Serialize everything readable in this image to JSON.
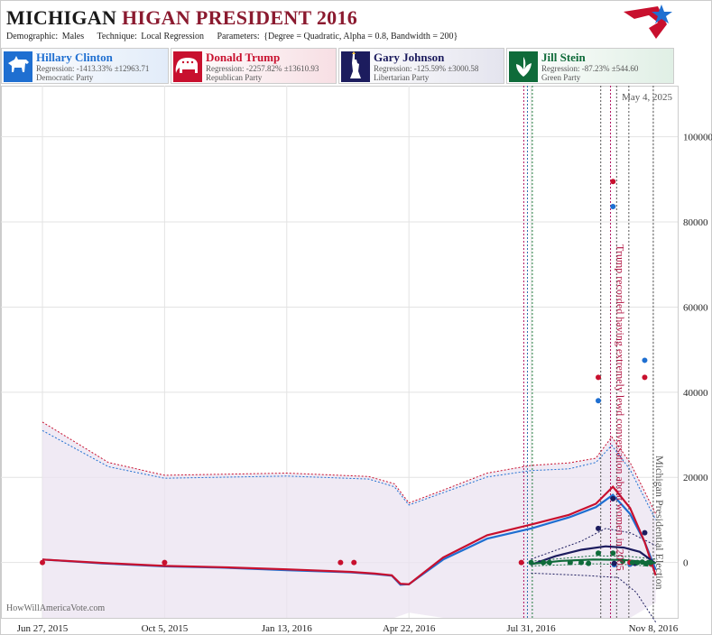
{
  "header": {
    "title_a": "MICHIGAN",
    "title_b": "HIGAN PRESIDENT 2016",
    "demographic_label": "Demographic:",
    "demographic_value": "Males",
    "technique_label": "Technique:",
    "technique_value": "Local Regression",
    "parameters_label": "Parameters:",
    "parameters_value": "{Degree = Quadratic, Alpha = 0.8, Bandwidth = 200}"
  },
  "logo": {
    "icon": "star-flag-logo-icon",
    "colors": [
      "#c8102e",
      "#1f6fd1"
    ]
  },
  "legend": [
    {
      "name": "Hillary Clinton",
      "regression": "Regression: -1413.33% ±12963.71",
      "party": "Democratic Party",
      "color": "#1f6fd1",
      "icon": "donkey-icon"
    },
    {
      "name": "Donald Trump",
      "regression": "Regression: -2257.82% ±13610.93",
      "party": "Republican Party",
      "color": "#c8102e",
      "icon": "elephant-icon"
    },
    {
      "name": "Gary Johnson",
      "regression": "Regression: -125.59% ±3000.58",
      "party": "Libertarian Party",
      "color": "#1c1c5e",
      "icon": "statue-of-liberty-icon"
    },
    {
      "name": "Jill Stein",
      "regression": "Regression: -87.23% ±544.60",
      "party": "Green Party",
      "color": "#0f6b3a",
      "icon": "leaf-icon"
    }
  ],
  "footer": {
    "site": "HowWillAmericaVote.com"
  },
  "chart_data": {
    "type": "line",
    "date_label": "May 4, 2025",
    "xlim": [
      "2015-05-24",
      "2016-11-28"
    ],
    "ylim": [
      -13000,
      112000
    ],
    "x_ticks": [
      {
        "date": "2015-06-27",
        "label": "Jun 27, 2015"
      },
      {
        "date": "2015-10-05",
        "label": "Oct 5, 2015"
      },
      {
        "date": "2016-01-13",
        "label": "Jan 13, 2016"
      },
      {
        "date": "2016-04-22",
        "label": "Apr 22, 2016"
      },
      {
        "date": "2016-07-31",
        "label": "Jul 31, 2016"
      },
      {
        "date": "2016-11-08",
        "label": "Nov 8, 2016"
      }
    ],
    "y_ticks": [
      0,
      20000,
      40000,
      60000,
      80000,
      100000
    ],
    "y_tick_labels": [
      "0",
      "20000",
      "40000",
      "60000",
      "80000",
      "100000"
    ],
    "grid": true,
    "band_color": "#ebe3f0",
    "annotations": [
      {
        "text": "Trump recorded having extremely lewd conversation about women in 2005",
        "date": "2016-10-07",
        "color": "#b01040"
      },
      {
        "text": "Michigan Presidential Election",
        "date": "2016-11-08",
        "color": "#555555"
      }
    ],
    "event_lines": [
      {
        "date": "2016-07-25",
        "color": "#b01060"
      },
      {
        "date": "2016-07-28",
        "color": "#2a6fb0"
      },
      {
        "date": "2016-08-01",
        "color": "#1f7a3a"
      },
      {
        "date": "2016-09-26",
        "color": "#555555"
      },
      {
        "date": "2016-10-04",
        "color": "#b01060"
      },
      {
        "date": "2016-10-09",
        "color": "#555555"
      },
      {
        "date": "2016-10-19",
        "color": "#555555"
      },
      {
        "date": "2016-11-08",
        "color": "#555555"
      }
    ],
    "series": [
      {
        "name": "Hillary Clinton",
        "color": "#1f6fd1",
        "line": [
          [
            "2015-06-27",
            700
          ],
          [
            "2015-08-15",
            -200
          ],
          [
            "2015-10-05",
            -900
          ],
          [
            "2015-11-20",
            -1200
          ],
          [
            "2016-01-13",
            -1800
          ],
          [
            "2016-03-05",
            -2300
          ],
          [
            "2016-03-25",
            -2700
          ],
          [
            "2016-04-08",
            -3100
          ],
          [
            "2016-04-15",
            -5200
          ],
          [
            "2016-04-22",
            -5100
          ],
          [
            "2016-05-20",
            700
          ],
          [
            "2016-06-25",
            5600
          ],
          [
            "2016-07-31",
            8000
          ],
          [
            "2016-08-31",
            10600
          ],
          [
            "2016-09-22",
            13000
          ],
          [
            "2016-10-06",
            15900
          ],
          [
            "2016-10-20",
            11400
          ],
          [
            "2016-11-01",
            4800
          ],
          [
            "2016-11-10",
            -1700
          ]
        ],
        "upper": [
          [
            "2015-06-27",
            31000
          ],
          [
            "2015-08-20",
            22500
          ],
          [
            "2015-10-05",
            19800
          ],
          [
            "2016-01-13",
            20300
          ],
          [
            "2016-03-20",
            19600
          ],
          [
            "2016-04-10",
            17800
          ],
          [
            "2016-04-22",
            13500
          ],
          [
            "2016-05-20",
            16400
          ],
          [
            "2016-06-25",
            20100
          ],
          [
            "2016-07-31",
            21600
          ],
          [
            "2016-08-31",
            22000
          ],
          [
            "2016-09-22",
            23500
          ],
          [
            "2016-10-05",
            27500
          ],
          [
            "2016-10-20",
            21800
          ],
          [
            "2016-11-10",
            10000
          ]
        ],
        "lower": [],
        "points": [
          [
            "2016-09-24",
            38000
          ],
          [
            "2016-10-06",
            83600
          ],
          [
            "2016-11-01",
            47500
          ],
          [
            "2016-10-07",
            -500
          ],
          [
            "2016-10-20",
            -400
          ]
        ]
      },
      {
        "name": "Donald Trump",
        "color": "#c8102e",
        "line": [
          [
            "2015-06-27",
            700
          ],
          [
            "2015-08-15",
            -100
          ],
          [
            "2015-10-05",
            -800
          ],
          [
            "2015-11-20",
            -1100
          ],
          [
            "2016-01-13",
            -1600
          ],
          [
            "2016-03-05",
            -2200
          ],
          [
            "2016-03-25",
            -2600
          ],
          [
            "2016-04-08",
            -3000
          ],
          [
            "2016-04-15",
            -5000
          ],
          [
            "2016-04-22",
            -5100
          ],
          [
            "2016-05-20",
            1200
          ],
          [
            "2016-06-25",
            6400
          ],
          [
            "2016-07-31",
            8900
          ],
          [
            "2016-08-31",
            11200
          ],
          [
            "2016-09-22",
            13800
          ],
          [
            "2016-10-06",
            17800
          ],
          [
            "2016-10-20",
            12800
          ],
          [
            "2016-11-01",
            4800
          ],
          [
            "2016-11-10",
            -3000
          ]
        ],
        "upper": [
          [
            "2015-06-27",
            33000
          ],
          [
            "2015-08-20",
            23500
          ],
          [
            "2015-10-05",
            20500
          ],
          [
            "2016-01-13",
            21000
          ],
          [
            "2016-03-20",
            20200
          ],
          [
            "2016-04-10",
            18500
          ],
          [
            "2016-04-22",
            14000
          ],
          [
            "2016-05-20",
            17000
          ],
          [
            "2016-06-25",
            21000
          ],
          [
            "2016-07-31",
            22800
          ],
          [
            "2016-08-31",
            23400
          ],
          [
            "2016-09-22",
            24500
          ],
          [
            "2016-10-05",
            29500
          ],
          [
            "2016-10-20",
            23500
          ],
          [
            "2016-11-10",
            11500
          ]
        ],
        "lower": [],
        "points": [
          [
            "2015-06-27",
            0
          ],
          [
            "2015-10-05",
            0
          ],
          [
            "2016-02-26",
            0
          ],
          [
            "2016-03-08",
            0
          ],
          [
            "2016-07-23",
            0
          ],
          [
            "2016-09-24",
            43500
          ],
          [
            "2016-10-06",
            89500
          ],
          [
            "2016-11-01",
            43500
          ],
          [
            "2016-10-20",
            0
          ],
          [
            "2016-11-06",
            -300
          ]
        ]
      },
      {
        "name": "Gary Johnson",
        "color": "#1c1c5e",
        "line": [
          [
            "2016-07-31",
            -500
          ],
          [
            "2016-08-20",
            1500
          ],
          [
            "2016-09-10",
            3000
          ],
          [
            "2016-09-30",
            3800
          ],
          [
            "2016-10-15",
            3500
          ],
          [
            "2016-10-28",
            2500
          ],
          [
            "2016-11-10",
            -200
          ]
        ],
        "upper": [
          [
            "2016-07-31",
            800
          ],
          [
            "2016-09-10",
            5000
          ],
          [
            "2016-09-30",
            8000
          ],
          [
            "2016-10-20",
            7000
          ],
          [
            "2016-11-10",
            4000
          ]
        ],
        "lower": [
          [
            "2016-07-31",
            -2500
          ],
          [
            "2016-09-10",
            -3000
          ],
          [
            "2016-10-10",
            -3500
          ],
          [
            "2016-10-25",
            -7000
          ],
          [
            "2016-11-10",
            -14000
          ]
        ],
        "points": [
          [
            "2016-09-24",
            8000
          ],
          [
            "2016-10-06",
            15000
          ],
          [
            "2016-11-01",
            7000
          ],
          [
            "2016-10-07",
            -200
          ],
          [
            "2016-10-24",
            -200
          ]
        ]
      },
      {
        "name": "Jill Stein",
        "color": "#0f6b3a",
        "line": [
          [
            "2016-07-31",
            -300
          ],
          [
            "2016-08-25",
            400
          ],
          [
            "2016-09-20",
            700
          ],
          [
            "2016-10-15",
            600
          ],
          [
            "2016-11-10",
            -100
          ]
        ],
        "upper": [
          [
            "2016-07-31",
            300
          ],
          [
            "2016-09-20",
            1600
          ],
          [
            "2016-10-20",
            1400
          ],
          [
            "2016-11-10",
            800
          ]
        ],
        "lower": [
          [
            "2016-07-31",
            -800
          ],
          [
            "2016-09-20",
            -300
          ],
          [
            "2016-10-20",
            -500
          ],
          [
            "2016-11-10",
            -1000
          ]
        ],
        "points": [
          [
            "2016-07-31",
            0
          ],
          [
            "2016-08-10",
            0
          ],
          [
            "2016-08-15",
            0
          ],
          [
            "2016-09-01",
            0
          ],
          [
            "2016-09-10",
            0
          ],
          [
            "2016-09-16",
            -200
          ],
          [
            "2016-09-24",
            2200
          ],
          [
            "2016-10-06",
            2200
          ],
          [
            "2016-10-14",
            300
          ],
          [
            "2016-10-22",
            0
          ],
          [
            "2016-10-26",
            0
          ],
          [
            "2016-10-30",
            100
          ],
          [
            "2016-11-02",
            -300
          ],
          [
            "2016-11-04",
            0
          ],
          [
            "2016-11-06",
            0
          ]
        ]
      }
    ]
  }
}
